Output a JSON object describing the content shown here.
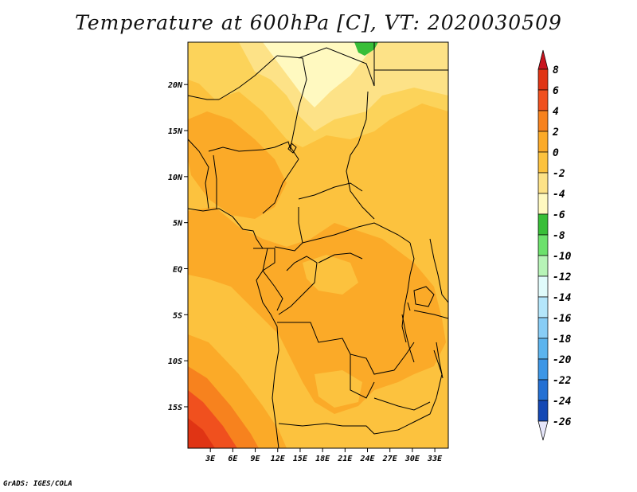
{
  "title": "Temperature at 600hPa [C], VT: 2020030509",
  "footer": "GrADS: IGES/COLA",
  "map": {
    "lon_range": [
      0,
      34.8
    ],
    "lat_range": [
      -19.5,
      24.6
    ],
    "x_ticks": [
      "3E",
      "6E",
      "9E",
      "12E",
      "15E",
      "18E",
      "21E",
      "24E",
      "27E",
      "30E",
      "33E"
    ],
    "x_tick_values": [
      3,
      6,
      9,
      12,
      15,
      18,
      21,
      24,
      27,
      30,
      33
    ],
    "y_ticks": [
      "20N",
      "15N",
      "10N",
      "5N",
      "EQ",
      "5S",
      "10S",
      "15S"
    ],
    "y_tick_values": [
      20,
      15,
      10,
      5,
      0,
      -5,
      -10,
      -15
    ]
  },
  "colorbar": {
    "labels": [
      "8",
      "6",
      "4",
      "2",
      "0",
      "-2",
      "-4",
      "-6",
      "-8",
      "-10",
      "-12",
      "-14",
      "-16",
      "-18",
      "-20",
      "-22",
      "-24",
      "-26"
    ],
    "colors": [
      "#e03414",
      "#f0501e",
      "#f7821e",
      "#fbaa28",
      "#fcc23e",
      "#fde287",
      "#fff9c0",
      "#38be38",
      "#6ce16c",
      "#b7f4b7",
      "#e0fbfb",
      "#b4e6fb",
      "#88cdf6",
      "#5cb4ee",
      "#3c96e6",
      "#2470d3",
      "#1448b4",
      "#0a1f82"
    ],
    "top_arrow_color": "#c8141e",
    "bottom_arrow_color": "#e6e6fa"
  },
  "field_colors": {
    "t4_6": "#fbaa28",
    "t2_4": "#fcc23e",
    "t0_2": "#fcd35a",
    "tm2_0": "#fde287",
    "tm4_m2": "#fff9c0",
    "tm6_m4": "#38be38",
    "t6_8": "#f7821e",
    "t8_plus": "#f0501e",
    "t8_hi": "#e03414"
  }
}
